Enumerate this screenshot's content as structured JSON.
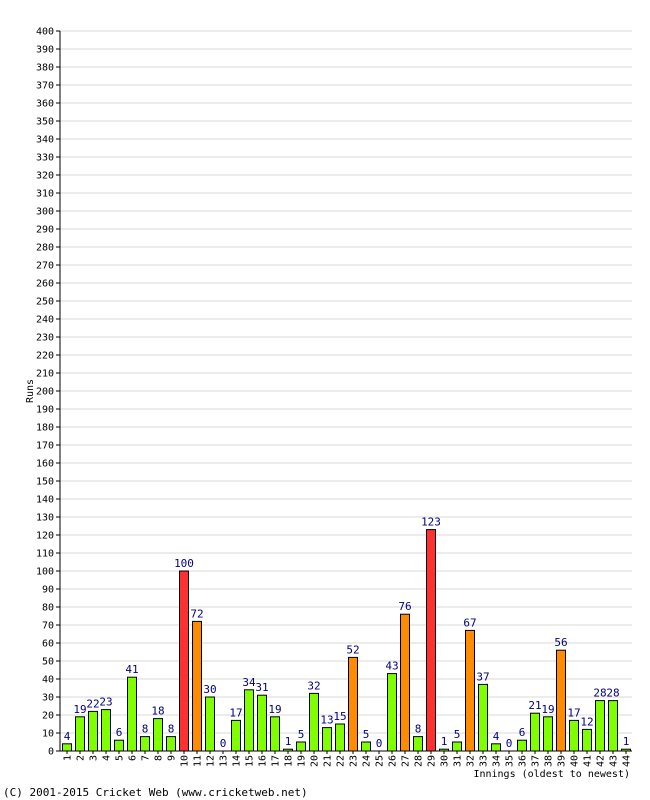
{
  "chart_data": {
    "type": "bar",
    "title": "",
    "xlabel": "Innings (oldest to newest)",
    "ylabel": "Runs",
    "ylim": [
      0,
      400
    ],
    "y_tick_step": 10,
    "grid": true,
    "categories": [
      "1",
      "2",
      "3",
      "4",
      "5",
      "6",
      "7",
      "8",
      "9",
      "10",
      "11",
      "12",
      "13",
      "14",
      "15",
      "16",
      "17",
      "18",
      "19",
      "20",
      "21",
      "22",
      "23",
      "24",
      "25",
      "26",
      "27",
      "28",
      "29",
      "30",
      "31",
      "32",
      "33",
      "34",
      "35",
      "36",
      "37",
      "38",
      "39",
      "40",
      "41",
      "42",
      "43",
      "44"
    ],
    "values": [
      4,
      19,
      22,
      23,
      6,
      41,
      8,
      18,
      8,
      100,
      72,
      30,
      0,
      17,
      34,
      31,
      19,
      1,
      5,
      32,
      13,
      15,
      52,
      5,
      0,
      43,
      76,
      8,
      123,
      1,
      5,
      67,
      37,
      4,
      0,
      6,
      21,
      19,
      56,
      17,
      12,
      28,
      28,
      1
    ],
    "colors": {
      "below_50": "#80ff00",
      "fifty_plus": "#ff8c00",
      "hundred_plus": "#ff3030",
      "bar_outline": "#000000",
      "grid": "#d8d8d8",
      "data_label": "#000080"
    }
  },
  "footer": {
    "copyright": "(C) 2001-2015 Cricket Web (www.cricketweb.net)"
  }
}
